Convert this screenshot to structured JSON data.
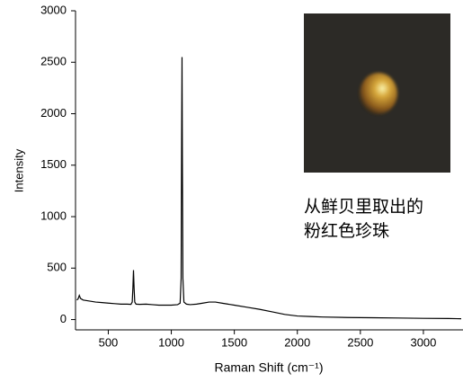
{
  "chart_data": {
    "type": "line",
    "x_label": "Raman Shift (cm⁻¹)",
    "y_label": "Intensity",
    "annotation": [
      "从鲜贝里取出的",
      "粉红色珍珠"
    ],
    "x": [
      250,
      260,
      270,
      280,
      300,
      350,
      400,
      450,
      500,
      550,
      600,
      650,
      680,
      690,
      695,
      700,
      705,
      710,
      720,
      750,
      800,
      850,
      900,
      950,
      1000,
      1050,
      1070,
      1078,
      1082,
      1085,
      1088,
      1092,
      1100,
      1120,
      1150,
      1200,
      1250,
      1300,
      1350,
      1400,
      1450,
      1500,
      1600,
      1700,
      1800,
      1900,
      2000,
      2100,
      2200,
      2400,
      2600,
      2800,
      3000,
      3200,
      3300
    ],
    "values": [
      190,
      200,
      235,
      205,
      190,
      180,
      170,
      165,
      160,
      155,
      150,
      150,
      148,
      170,
      300,
      480,
      300,
      170,
      150,
      148,
      150,
      145,
      140,
      140,
      140,
      145,
      160,
      400,
      1800,
      2550,
      1500,
      400,
      170,
      150,
      145,
      150,
      160,
      170,
      170,
      160,
      150,
      140,
      120,
      100,
      75,
      50,
      35,
      30,
      25,
      20,
      18,
      15,
      12,
      10,
      8
    ],
    "color": "#000000",
    "xlim": [
      240,
      3300
    ],
    "xticks": [
      500,
      1000,
      1500,
      2000,
      2500,
      3000
    ],
    "ylim": [
      -100,
      3000
    ],
    "yticks": [
      0,
      500,
      1000,
      1500,
      2000,
      2500,
      3000
    ]
  }
}
